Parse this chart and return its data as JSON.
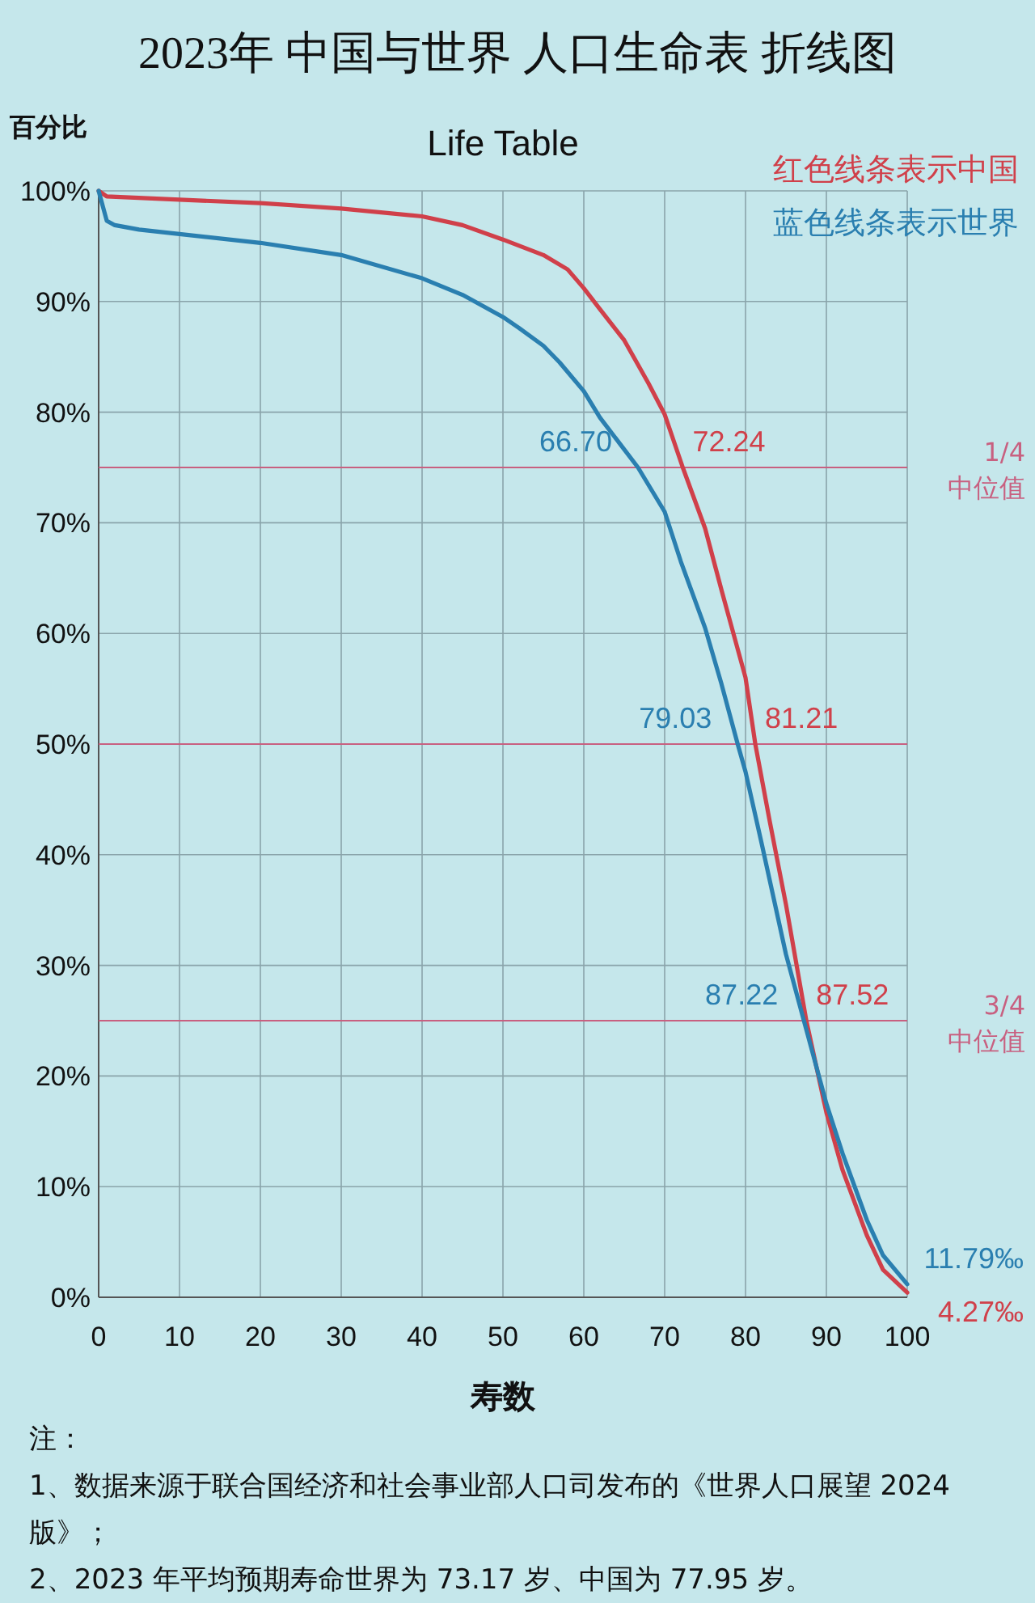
{
  "chart_data": {
    "type": "line",
    "title": "2023年 中国与世界 人口生命表 折线图",
    "subtitle": "Life Table",
    "ylabel": "百分比",
    "xlabel": "寿数",
    "xlim": [
      0,
      100
    ],
    "ylim": [
      0,
      100
    ],
    "xticks": [
      0,
      10,
      20,
      30,
      40,
      50,
      60,
      70,
      80,
      90,
      100
    ],
    "yticks": [
      {
        "value": 0,
        "label": "0%"
      },
      {
        "value": 10,
        "label": "10%"
      },
      {
        "value": 20,
        "label": "20%"
      },
      {
        "value": 30,
        "label": "30%"
      },
      {
        "value": 40,
        "label": "40%"
      },
      {
        "value": 50,
        "label": "50%"
      },
      {
        "value": 60,
        "label": "60%"
      },
      {
        "value": 70,
        "label": "70%"
      },
      {
        "value": 80,
        "label": "80%"
      },
      {
        "value": 90,
        "label": "90%"
      },
      {
        "value": 100,
        "label": "100%"
      }
    ],
    "grid": true,
    "legend": "top right",
    "marker": "none",
    "line_style": "solid",
    "series": [
      {
        "name": "红色线条表示中国",
        "color": "#d0404a",
        "x": [
          0,
          1,
          10,
          20,
          30,
          40,
          45,
          50,
          55,
          58,
          60,
          62,
          65,
          68,
          70,
          72.24,
          75,
          77,
          80,
          81.21,
          83,
          85,
          87.52,
          90,
          92,
          95,
          97,
          100
        ],
        "values": [
          100,
          99.5,
          99.2,
          98.9,
          98.4,
          97.7,
          96.9,
          95.6,
          94.2,
          92.9,
          91.2,
          89.3,
          86.5,
          82.6,
          79.8,
          75,
          69.5,
          64,
          56,
          50,
          43,
          35.5,
          25,
          16.7,
          11.5,
          5.6,
          2.5,
          0.427
        ]
      },
      {
        "name": "蓝色线条表示世界",
        "color": "#2a7fb0",
        "x": [
          0,
          1,
          2,
          5,
          10,
          20,
          30,
          40,
          45,
          50,
          52,
          55,
          57,
          60,
          62,
          66.7,
          70,
          72,
          75,
          77,
          79.03,
          80,
          82,
          85,
          87.22,
          90,
          92,
          95,
          97,
          100
        ],
        "values": [
          100,
          97.3,
          96.9,
          96.5,
          96.1,
          95.3,
          94.2,
          92.1,
          90.6,
          88.6,
          87.6,
          86,
          84.5,
          81.9,
          79.5,
          75,
          71,
          66.5,
          60.5,
          55.5,
          50,
          47.5,
          41,
          31,
          25,
          17.5,
          13,
          7,
          3.8,
          1.179
        ]
      }
    ],
    "ref_lines": [
      {
        "axis": "y",
        "value": 75,
        "label": "1/4 中位值",
        "color": "#c86080"
      },
      {
        "axis": "y",
        "value": 50,
        "color": "#c86080"
      },
      {
        "axis": "y",
        "value": 25,
        "label": "3/4 中位值",
        "color": "#c86080"
      }
    ],
    "annotations": [
      {
        "text": "66.70",
        "x": 66.7,
        "y": 75
      },
      {
        "text": "72.24",
        "x": 72.24,
        "y": 75
      },
      {
        "text": "79.03",
        "x": 79.03,
        "y": 50
      },
      {
        "text": "81.21",
        "x": 81.21,
        "y": 50
      },
      {
        "text": "87.22",
        "x": 87.22,
        "y": 25
      },
      {
        "text": "87.52",
        "x": 87.52,
        "y": 25
      },
      {
        "text": "11.79‰",
        "x": 100,
        "y": 1.179
      },
      {
        "text": "4.27‰",
        "x": 100,
        "y": 0.427
      },
      "注：",
      "1、数据来源于联合国经济和社会事业部人口司发布的《世界人口展望 2024 版》；",
      "2、2023 年平均预期寿命世界为 73.17 岁、中国为 77.95 岁。"
    ]
  }
}
